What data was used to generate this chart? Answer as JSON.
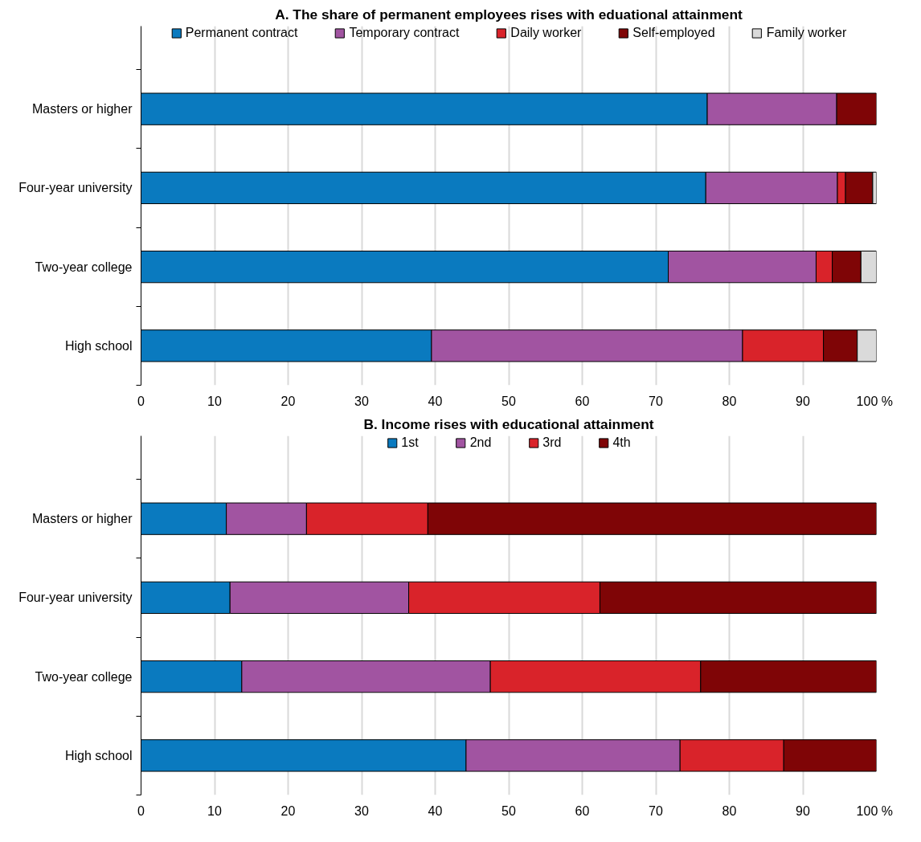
{
  "chart_data": [
    {
      "type": "bar",
      "orientation": "horizontal",
      "stacked": true,
      "title": "A. The share of permanent employees rises with eduational attainment",
      "categories": [
        "Masters or higher",
        "Four-year university",
        "Two-year college",
        "High school"
      ],
      "series": [
        {
          "name": "Permanent contract",
          "color": "#0a7abf",
          "values": [
            77.0,
            76.8,
            71.7,
            39.5
          ]
        },
        {
          "name": "Temporary contract",
          "color": "#a154a1",
          "values": [
            17.6,
            17.9,
            20.1,
            42.3
          ]
        },
        {
          "name": "Daily worker",
          "color": "#d9232a",
          "values": [
            null,
            1.1,
            2.2,
            11.0
          ]
        },
        {
          "name": "Self-employed",
          "color": "#7f0506",
          "values": [
            5.4,
            3.7,
            3.9,
            4.6
          ]
        },
        {
          "name": "Family worker",
          "color": "#dadada",
          "values": [
            null,
            0.5,
            2.1,
            2.6
          ]
        }
      ],
      "xlim": [
        0,
        100
      ],
      "xticks": [
        0,
        10,
        20,
        30,
        40,
        50,
        60,
        70,
        80,
        90,
        {
          "value": 100,
          "label": "100  %"
        }
      ],
      "grid": "x",
      "legend": "top"
    },
    {
      "type": "bar",
      "orientation": "horizontal",
      "stacked": true,
      "title": "B. Income rises with educational attainment",
      "categories": [
        "Masters or higher",
        "Four-year university",
        "Two-year college",
        "High school"
      ],
      "series": [
        {
          "name": "1st",
          "color": "#0a7abf",
          "values": [
            11.6,
            12.1,
            13.7,
            44.2
          ]
        },
        {
          "name": "2nd",
          "color": "#a154a1",
          "values": [
            10.9,
            24.3,
            33.8,
            29.1
          ]
        },
        {
          "name": "3rd",
          "color": "#d9232a",
          "values": [
            16.5,
            26.0,
            28.6,
            14.1
          ]
        },
        {
          "name": "4th",
          "color": "#7f0506",
          "values": [
            61.0,
            37.6,
            23.9,
            12.6
          ]
        }
      ],
      "xlim": [
        0,
        100
      ],
      "xticks": [
        0,
        10,
        20,
        30,
        40,
        50,
        60,
        70,
        80,
        90,
        {
          "value": 100,
          "label": "100  %"
        }
      ],
      "grid": "x",
      "legend": "top"
    }
  ]
}
